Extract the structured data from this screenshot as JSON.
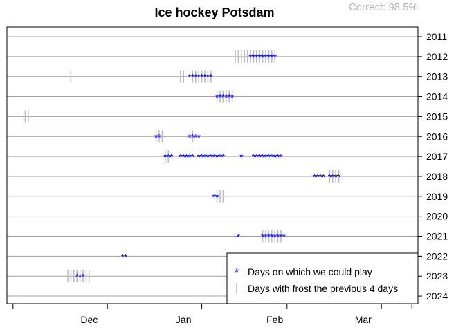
{
  "chart_data": {
    "type": "scatter",
    "title": "Ice hockey Potsdam",
    "annotation": "Correct: 98.5%",
    "xlabel": "",
    "ylabel": "",
    "x_unit": "days since Dec 1",
    "xlim": [
      -12,
      123
    ],
    "x_tick_labels": [
      {
        "label": "Dec",
        "at": 15
      },
      {
        "label": "Jan",
        "at": 46
      },
      {
        "label": "Feb",
        "at": 76
      },
      {
        "label": "Mar",
        "at": 105
      }
    ],
    "x_ticks": [
      -10,
      21,
      52,
      80,
      111,
      121
    ],
    "years": [
      2011,
      2012,
      2013,
      2014,
      2015,
      2016,
      2017,
      2018,
      2019,
      2020,
      2021,
      2022,
      2023,
      2024
    ],
    "legend": {
      "position": "bottom-right",
      "entries": [
        {
          "marker": "*",
          "color": "#0000ff",
          "label": "Days on which we could play"
        },
        {
          "marker": "|",
          "color": "#bebebe",
          "label": "Days with frost the previous 4 days"
        }
      ]
    },
    "colors": {
      "play": "#0000ff",
      "frost": "#bebebe",
      "grid": "#a0a0a0"
    },
    "series": [
      {
        "name": "Days on which we could play",
        "rows": [
          {
            "year": 2012,
            "days": [
              68,
              69,
              70,
              71,
              72,
              73,
              74,
              75,
              76
            ]
          },
          {
            "year": 2013,
            "days": [
              48,
              49,
              50,
              51,
              52,
              53,
              54,
              55
            ]
          },
          {
            "year": 2014,
            "days": [
              57,
              58,
              59,
              60,
              61,
              62
            ]
          },
          {
            "year": 2016,
            "days": [
              37,
              38,
              48,
              49,
              50,
              51
            ]
          },
          {
            "year": 2017,
            "days": [
              40,
              41,
              42,
              45,
              46,
              47,
              48,
              49,
              51,
              52,
              53,
              54,
              55,
              56,
              57,
              58,
              59,
              65,
              69,
              70,
              71,
              72,
              73,
              74,
              75,
              76,
              77,
              78
            ]
          },
          {
            "year": 2018,
            "days": [
              89,
              90,
              91,
              92,
              94,
              95,
              96,
              97
            ]
          },
          {
            "year": 2019,
            "days": [
              56,
              57
            ]
          },
          {
            "year": 2021,
            "days": [
              64,
              72,
              73,
              74,
              75,
              76,
              77,
              78,
              79
            ]
          },
          {
            "year": 2022,
            "days": [
              26,
              27
            ]
          },
          {
            "year": 2023,
            "days": [
              11,
              12,
              13
            ]
          }
        ]
      },
      {
        "name": "Days with frost the previous 4 days",
        "rows": [
          {
            "year": 2012,
            "days": [
              63,
              64,
              65,
              66,
              67,
              68,
              69,
              70,
              71,
              72,
              73,
              74,
              75,
              76
            ]
          },
          {
            "year": 2013,
            "days": [
              9,
              45,
              46,
              49,
              50,
              51,
              52,
              53,
              54,
              55
            ]
          },
          {
            "year": 2014,
            "days": [
              57,
              58,
              59,
              60,
              61,
              62
            ]
          },
          {
            "year": 2015,
            "days": [
              -6,
              -5
            ]
          },
          {
            "year": 2016,
            "days": [
              37,
              38,
              39,
              49
            ]
          },
          {
            "year": 2017,
            "days": [
              40,
              41
            ]
          },
          {
            "year": 2018,
            "days": [
              94,
              95,
              96,
              97
            ]
          },
          {
            "year": 2019,
            "days": [
              57,
              58,
              59
            ]
          },
          {
            "year": 2021,
            "days": [
              72,
              73,
              74,
              75,
              76,
              77,
              78
            ]
          },
          {
            "year": 2023,
            "days": [
              8,
              9,
              10,
              11,
              12,
              13,
              14,
              15
            ]
          }
        ]
      }
    ]
  }
}
